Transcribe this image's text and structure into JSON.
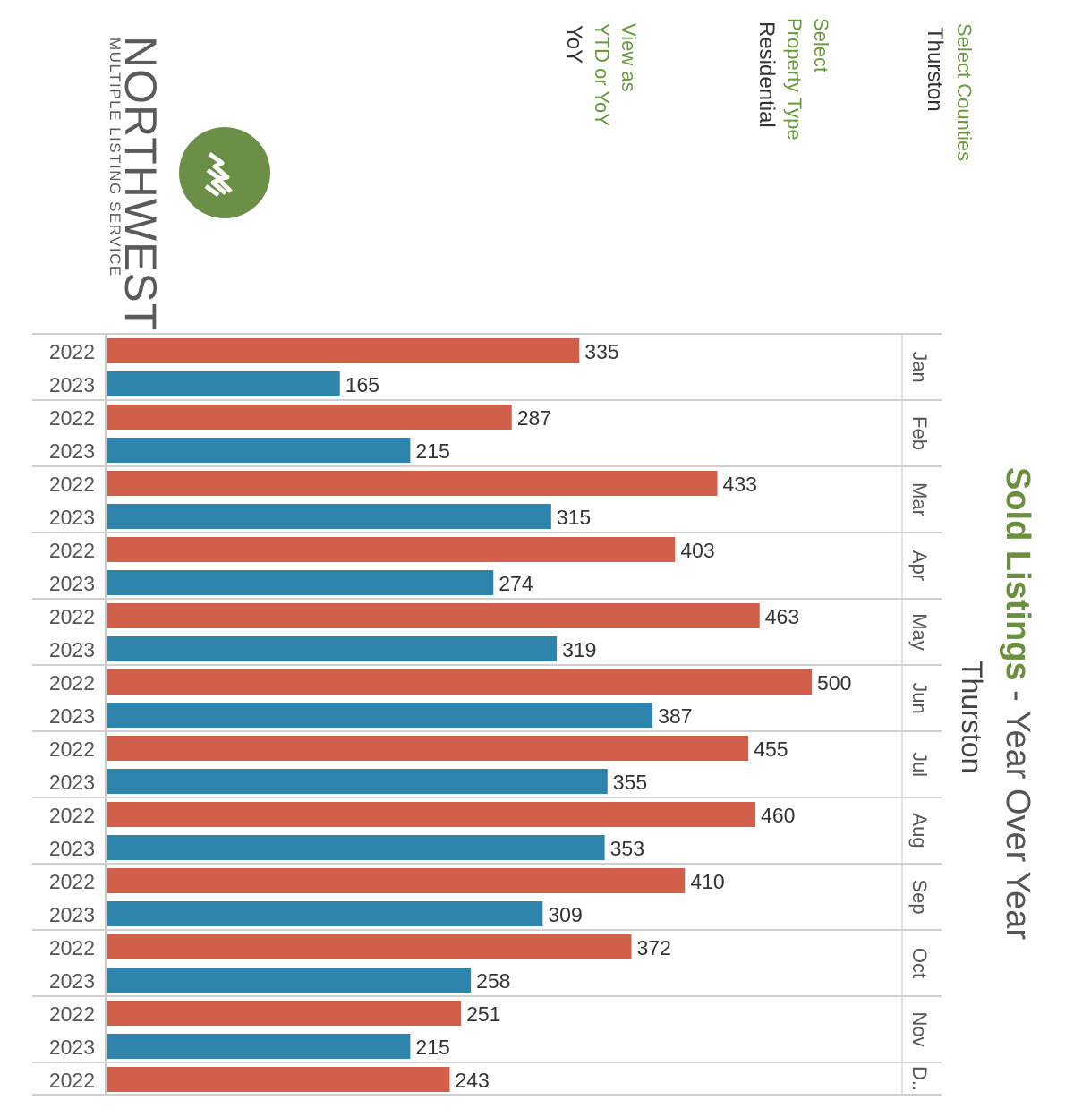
{
  "header": {
    "title_main": "Sold Listings",
    "title_rest": " - Year Over Year",
    "subtitle": "Thurston",
    "title_color": "#6b8f3f"
  },
  "filters": {
    "counties_label": "Select Counties",
    "counties_value": "Thurston",
    "property_label_line1": "Select",
    "property_label_line2": "Property Type",
    "property_value": "Residential",
    "view_label_line1": "View as",
    "view_label_line2": "YTD or YoY",
    "view_value": "YoY",
    "label_color": "#6b9a3e"
  },
  "logo": {
    "name_line1": "NORTHWEST",
    "name_line2": "MULTIPLE LISTING SERVICE",
    "circle_color": "#6b8f47",
    "icon": "nwmls-logo-icon"
  },
  "colors": {
    "series_2022": "#d0604a",
    "series_2023": "#2f84ac"
  },
  "chart_data": {
    "type": "bar",
    "orientation": "horizontal",
    "categories": [
      "Jan",
      "Feb",
      "Mar",
      "Apr",
      "May",
      "Jun",
      "Jul",
      "Aug",
      "Sep",
      "Oct",
      "Nov",
      "D.."
    ],
    "series": [
      {
        "name": "2022",
        "values": [
          335,
          287,
          433,
          403,
          463,
          500,
          455,
          460,
          410,
          372,
          251,
          243
        ]
      },
      {
        "name": "2023",
        "values": [
          165,
          215,
          315,
          274,
          319,
          387,
          355,
          353,
          309,
          258,
          215,
          null
        ]
      }
    ],
    "xlim": [
      0,
      560
    ],
    "grid": false,
    "data_labels": true
  }
}
